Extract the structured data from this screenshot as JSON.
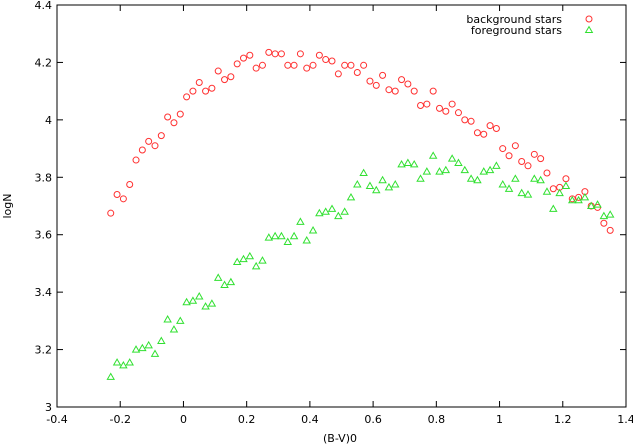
{
  "chart_data": {
    "type": "scatter",
    "xlabel": "(B-V)0",
    "ylabel": "logN",
    "xlim": [
      -0.4,
      1.4
    ],
    "ylim": [
      3.0,
      4.4
    ],
    "x_ticks": [
      "-0.4",
      "-0.2",
      "0",
      "0.2",
      "0.4",
      "0.6",
      "0.8",
      "1",
      "1.2",
      "1.4"
    ],
    "y_ticks": [
      "3",
      "3.2",
      "3.4",
      "3.6",
      "3.8",
      "4",
      "4.2",
      "4.4"
    ],
    "grid": false,
    "legend_position": "top-right",
    "series": [
      {
        "name": "background stars",
        "marker": "circle",
        "color": "#ff3030",
        "points": [
          [
            -0.23,
            3.675
          ],
          [
            -0.21,
            3.74
          ],
          [
            -0.19,
            3.725
          ],
          [
            -0.17,
            3.775
          ],
          [
            -0.15,
            3.86
          ],
          [
            -0.13,
            3.895
          ],
          [
            -0.11,
            3.925
          ],
          [
            -0.09,
            3.91
          ],
          [
            -0.07,
            3.945
          ],
          [
            -0.05,
            4.01
          ],
          [
            -0.03,
            3.99
          ],
          [
            -0.01,
            4.02
          ],
          [
            0.01,
            4.08
          ],
          [
            0.03,
            4.1
          ],
          [
            0.05,
            4.13
          ],
          [
            0.07,
            4.1
          ],
          [
            0.09,
            4.11
          ],
          [
            0.11,
            4.17
          ],
          [
            0.13,
            4.14
          ],
          [
            0.15,
            4.15
          ],
          [
            0.17,
            4.195
          ],
          [
            0.19,
            4.215
          ],
          [
            0.21,
            4.225
          ],
          [
            0.23,
            4.18
          ],
          [
            0.25,
            4.19
          ],
          [
            0.27,
            4.235
          ],
          [
            0.29,
            4.23
          ],
          [
            0.31,
            4.23
          ],
          [
            0.33,
            4.19
          ],
          [
            0.35,
            4.19
          ],
          [
            0.37,
            4.23
          ],
          [
            0.39,
            4.18
          ],
          [
            0.41,
            4.19
          ],
          [
            0.43,
            4.225
          ],
          [
            0.45,
            4.21
          ],
          [
            0.47,
            4.205
          ],
          [
            0.49,
            4.16
          ],
          [
            0.51,
            4.19
          ],
          [
            0.53,
            4.19
          ],
          [
            0.55,
            4.165
          ],
          [
            0.57,
            4.19
          ],
          [
            0.59,
            4.135
          ],
          [
            0.61,
            4.12
          ],
          [
            0.63,
            4.155
          ],
          [
            0.65,
            4.105
          ],
          [
            0.67,
            4.1
          ],
          [
            0.69,
            4.14
          ],
          [
            0.71,
            4.125
          ],
          [
            0.73,
            4.1
          ],
          [
            0.75,
            4.05
          ],
          [
            0.77,
            4.055
          ],
          [
            0.79,
            4.1
          ],
          [
            0.81,
            4.04
          ],
          [
            0.83,
            4.03
          ],
          [
            0.85,
            4.055
          ],
          [
            0.87,
            4.025
          ],
          [
            0.89,
            4.0
          ],
          [
            0.91,
            3.995
          ],
          [
            0.93,
            3.955
          ],
          [
            0.95,
            3.95
          ],
          [
            0.97,
            3.98
          ],
          [
            0.99,
            3.97
          ],
          [
            1.01,
            3.9
          ],
          [
            1.03,
            3.875
          ],
          [
            1.05,
            3.91
          ],
          [
            1.07,
            3.855
          ],
          [
            1.09,
            3.84
          ],
          [
            1.11,
            3.88
          ],
          [
            1.13,
            3.865
          ],
          [
            1.15,
            3.815
          ],
          [
            1.17,
            3.76
          ],
          [
            1.19,
            3.765
          ],
          [
            1.21,
            3.795
          ],
          [
            1.23,
            3.725
          ],
          [
            1.25,
            3.73
          ],
          [
            1.27,
            3.75
          ],
          [
            1.29,
            3.7
          ],
          [
            1.31,
            3.695
          ],
          [
            1.33,
            3.64
          ],
          [
            1.35,
            3.615
          ]
        ]
      },
      {
        "name": "foreground stars",
        "marker": "triangle",
        "color": "#30e030",
        "points": [
          [
            -0.23,
            3.105
          ],
          [
            -0.21,
            3.155
          ],
          [
            -0.19,
            3.145
          ],
          [
            -0.17,
            3.155
          ],
          [
            -0.15,
            3.2
          ],
          [
            -0.13,
            3.205
          ],
          [
            -0.11,
            3.215
          ],
          [
            -0.09,
            3.185
          ],
          [
            -0.07,
            3.23
          ],
          [
            -0.05,
            3.305
          ],
          [
            -0.03,
            3.27
          ],
          [
            -0.01,
            3.3
          ],
          [
            0.01,
            3.365
          ],
          [
            0.03,
            3.37
          ],
          [
            0.05,
            3.385
          ],
          [
            0.07,
            3.35
          ],
          [
            0.09,
            3.36
          ],
          [
            0.11,
            3.45
          ],
          [
            0.13,
            3.425
          ],
          [
            0.15,
            3.435
          ],
          [
            0.17,
            3.505
          ],
          [
            0.19,
            3.515
          ],
          [
            0.21,
            3.525
          ],
          [
            0.23,
            3.49
          ],
          [
            0.25,
            3.51
          ],
          [
            0.27,
            3.59
          ],
          [
            0.29,
            3.595
          ],
          [
            0.31,
            3.595
          ],
          [
            0.33,
            3.575
          ],
          [
            0.35,
            3.595
          ],
          [
            0.37,
            3.645
          ],
          [
            0.39,
            3.58
          ],
          [
            0.41,
            3.615
          ],
          [
            0.43,
            3.675
          ],
          [
            0.45,
            3.68
          ],
          [
            0.47,
            3.69
          ],
          [
            0.49,
            3.665
          ],
          [
            0.51,
            3.68
          ],
          [
            0.53,
            3.73
          ],
          [
            0.55,
            3.775
          ],
          [
            0.57,
            3.815
          ],
          [
            0.59,
            3.77
          ],
          [
            0.61,
            3.755
          ],
          [
            0.63,
            3.79
          ],
          [
            0.65,
            3.765
          ],
          [
            0.67,
            3.775
          ],
          [
            0.69,
            3.845
          ],
          [
            0.71,
            3.85
          ],
          [
            0.73,
            3.845
          ],
          [
            0.75,
            3.795
          ],
          [
            0.77,
            3.82
          ],
          [
            0.79,
            3.875
          ],
          [
            0.81,
            3.82
          ],
          [
            0.83,
            3.825
          ],
          [
            0.85,
            3.865
          ],
          [
            0.87,
            3.85
          ],
          [
            0.89,
            3.825
          ],
          [
            0.91,
            3.795
          ],
          [
            0.93,
            3.79
          ],
          [
            0.95,
            3.82
          ],
          [
            0.97,
            3.825
          ],
          [
            0.99,
            3.84
          ],
          [
            1.01,
            3.775
          ],
          [
            1.03,
            3.76
          ],
          [
            1.05,
            3.795
          ],
          [
            1.07,
            3.745
          ],
          [
            1.09,
            3.74
          ],
          [
            1.11,
            3.795
          ],
          [
            1.13,
            3.79
          ],
          [
            1.15,
            3.75
          ],
          [
            1.17,
            3.69
          ],
          [
            1.19,
            3.745
          ],
          [
            1.21,
            3.77
          ],
          [
            1.23,
            3.72
          ],
          [
            1.25,
            3.72
          ],
          [
            1.27,
            3.73
          ],
          [
            1.29,
            3.7
          ],
          [
            1.31,
            3.705
          ],
          [
            1.33,
            3.665
          ],
          [
            1.35,
            3.67
          ]
        ]
      }
    ]
  }
}
